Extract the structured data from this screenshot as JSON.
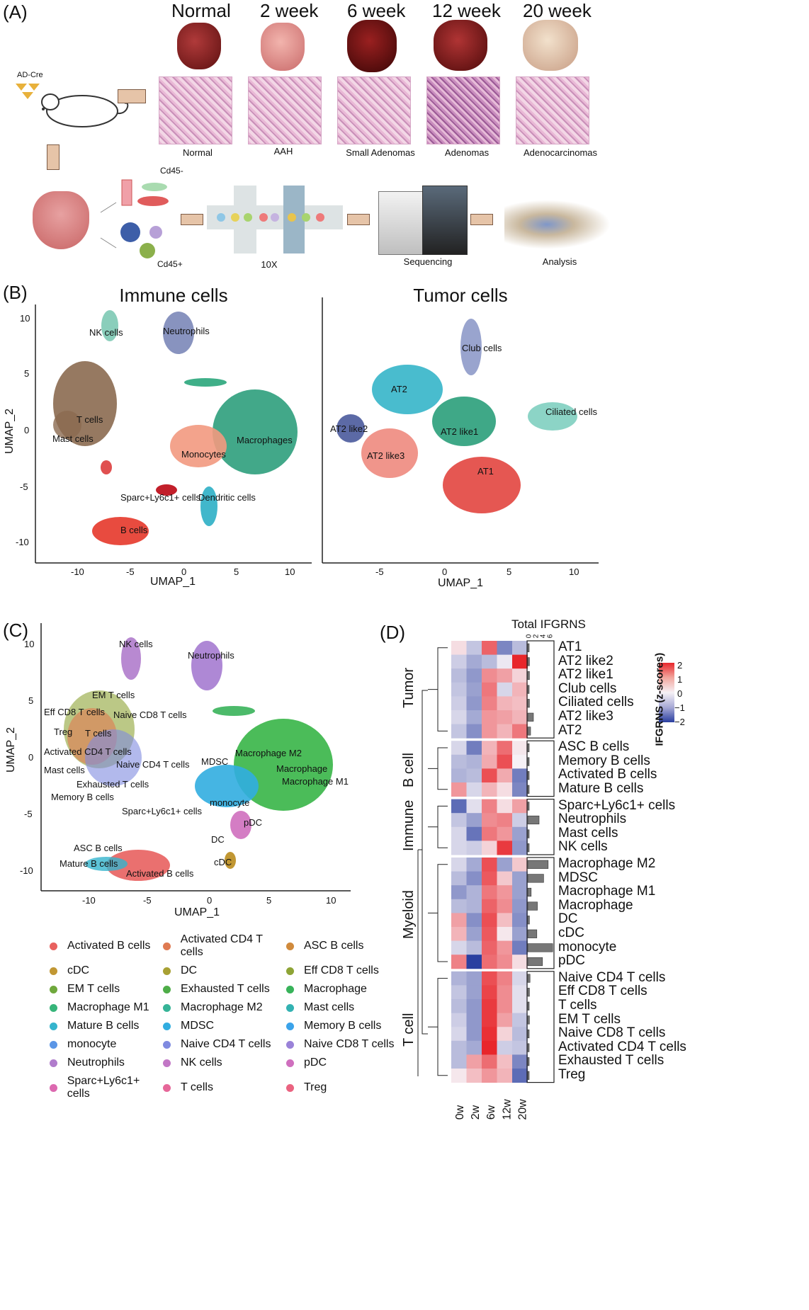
{
  "panelA": {
    "label": "(A)",
    "stages": [
      "Normal",
      "2 week",
      "6 week",
      "12 week",
      "20 week"
    ],
    "captions": [
      "Normal",
      "AAH",
      "Small Adenomas",
      "Adenomas",
      "Adenocarcinomas"
    ],
    "adcre": "AD-Cre",
    "cd45neg": "Cd45-",
    "cd45pos": "Cd45+",
    "tenx": "10X",
    "sequencing": "Sequencing",
    "analysis": "Analysis"
  },
  "panelB": {
    "label": "(B)",
    "left_title": "Immune cells",
    "right_title": "Tumor cells",
    "ylabel": "UMAP_2",
    "xlabel": "UMAP_1",
    "left_yticks": [
      "10",
      "5",
      "0",
      "-5",
      "-10"
    ],
    "left_xticks": [
      "-10",
      "-5",
      "0",
      "5",
      "10"
    ],
    "right_xticks": [
      "-5",
      "0",
      "5",
      "10"
    ],
    "left_clusters": [
      "NK cells",
      "Neutrophils",
      "T cells",
      "Mast cells",
      "Macrophages",
      "Monocytes",
      "Sparc+Ly6c1+ cells",
      "Dendritic cells",
      "B cells"
    ],
    "right_clusters": [
      "Club cells",
      "AT2",
      "Ciliated cells",
      "AT2 like2",
      "AT2 like1",
      "AT2 like3",
      "AT1"
    ]
  },
  "panelC": {
    "label": "(C)",
    "ylabel": "UMAP_2",
    "xlabel": "UMAP_1",
    "yticks": [
      "10",
      "5",
      "0",
      "-5",
      "-10"
    ],
    "xticks": [
      "-10",
      "-5",
      "0",
      "5",
      "10"
    ],
    "clusters": [
      "NK cells",
      "Neutrophils",
      "EM T cells",
      "Eff CD8 T cells",
      "Naive CD8 T cells",
      "Treg",
      "T cells",
      "Activated CD4 T cells",
      "Mast cells",
      "Naive CD4 T cells",
      "Exhausted T cells",
      "Memory B cells",
      "MDSC",
      "Macrophage M2",
      "Macrophage",
      "Macrophage M1",
      "monocyte",
      "Sparc+Ly6c1+ cells",
      "pDC",
      "DC",
      "cDC",
      "ASC B cells",
      "Mature B cells",
      "Activated B cells"
    ],
    "legend": [
      {
        "name": "Activated B cells",
        "color": "#e8615f"
      },
      {
        "name": "Activated CD4 T cells",
        "color": "#df7a52"
      },
      {
        "name": "ASC B cells",
        "color": "#d08a3c"
      },
      {
        "name": "cDC",
        "color": "#c19733"
      },
      {
        "name": "DC",
        "color": "#a8a033"
      },
      {
        "name": "Eff CD8 T cells",
        "color": "#8ea436"
      },
      {
        "name": "EM T cells",
        "color": "#6fa83c"
      },
      {
        "name": "Exhausted T cells",
        "color": "#4ead48"
      },
      {
        "name": "Macrophage",
        "color": "#38b35a"
      },
      {
        "name": "Macrophage M1",
        "color": "#37b57a"
      },
      {
        "name": "Macrophage M2",
        "color": "#36b497"
      },
      {
        "name": "Mast cells",
        "color": "#33b2b2"
      },
      {
        "name": "Mature B cells",
        "color": "#35b4cd"
      },
      {
        "name": "MDSC",
        "color": "#31ade0"
      },
      {
        "name": "Memory B cells",
        "color": "#3ba3ea"
      },
      {
        "name": "monocyte",
        "color": "#5b96e6"
      },
      {
        "name": "Naive CD4 T cells",
        "color": "#7f8ae0"
      },
      {
        "name": "Naive CD8 T cells",
        "color": "#9a82d8"
      },
      {
        "name": "Neutrophils",
        "color": "#b07ccc"
      },
      {
        "name": "NK cells",
        "color": "#c277c6"
      },
      {
        "name": "pDC",
        "color": "#cf6fbe"
      },
      {
        "name": "Sparc+Ly6c1+ cells",
        "color": "#dc69b0"
      },
      {
        "name": "T cells",
        "color": "#e66799"
      },
      {
        "name": "Treg",
        "color": "#ea6380"
      }
    ]
  },
  "panelD": {
    "label": "(D)",
    "total_title": "Total IFGRNS",
    "total_ticks": [
      "0",
      "2",
      "4",
      "6"
    ],
    "legend_title": "IFGRNS (z-scores)",
    "legend_ticks": [
      "2",
      "1",
      "0",
      "−1",
      "−2"
    ],
    "columns": [
      "0w",
      "2w",
      "6w",
      "12w",
      "20w"
    ],
    "groups": [
      {
        "name": "Tumor",
        "rows": [
          {
            "name": "AT1",
            "z": [
              0.2,
              -0.5,
              1.4,
              -1.2,
              -0.6
            ],
            "total": 0.2
          },
          {
            "name": "AT2 like2",
            "z": [
              -0.4,
              -0.8,
              -0.6,
              -0.1,
              2.0
            ],
            "total": 0.3
          },
          {
            "name": "AT2 like1",
            "z": [
              -0.6,
              -1.0,
              1.0,
              0.8,
              0.3
            ],
            "total": 0.3
          },
          {
            "name": "Club cells",
            "z": [
              -0.5,
              -0.9,
              1.2,
              -0.3,
              0.6
            ],
            "total": 0.2
          },
          {
            "name": "Ciliated cells",
            "z": [
              -0.4,
              -1.0,
              1.1,
              0.6,
              0.5
            ],
            "total": 0.3
          },
          {
            "name": "AT2 like3",
            "z": [
              -0.3,
              -0.8,
              0.9,
              0.8,
              0.6
            ],
            "total": 1.0
          },
          {
            "name": "AT2",
            "z": [
              -0.5,
              -1.1,
              0.9,
              0.6,
              1.2
            ],
            "total": 0.5
          }
        ]
      },
      {
        "name": "B cell",
        "rows": [
          {
            "name": "ASC B cells",
            "z": [
              -0.3,
              -1.3,
              0.6,
              1.3,
              0.1
            ],
            "total": 0.2
          },
          {
            "name": "Memory B cells",
            "z": [
              -0.6,
              -0.7,
              0.7,
              1.6,
              0.0
            ],
            "total": 0.2
          },
          {
            "name": "Activated B cells",
            "z": [
              -0.7,
              -0.6,
              1.6,
              0.7,
              -1.3
            ],
            "total": 0.2
          },
          {
            "name": "Mature B cells",
            "z": [
              0.9,
              -0.3,
              0.6,
              0.2,
              -1.2
            ],
            "total": 0.1
          }
        ]
      },
      {
        "name": "Immune",
        "rows": [
          {
            "name": "Sparc+Ly6c1+ cells",
            "z": [
              -1.5,
              -0.2,
              1.1,
              0.2,
              0.8
            ],
            "total": 0.2
          },
          {
            "name": "Neutrophils",
            "z": [
              -0.5,
              -0.9,
              1.0,
              1.1,
              -0.4
            ],
            "total": 2.0
          },
          {
            "name": "Mast cells",
            "z": [
              -0.3,
              -1.4,
              1.2,
              0.9,
              -0.9
            ],
            "total": 0.2
          },
          {
            "name": "NK cells",
            "z": [
              -0.3,
              -0.4,
              0.3,
              1.8,
              -1.0
            ],
            "total": 0.1
          }
        ]
      },
      {
        "name": "Myeloid",
        "rows": [
          {
            "name": "Macrophage M2",
            "z": [
              -0.3,
              -0.8,
              1.6,
              -0.9,
              0.4
            ],
            "total": 3.6
          },
          {
            "name": "MDSC",
            "z": [
              -0.6,
              -1.1,
              1.5,
              0.4,
              -0.9
            ],
            "total": 2.8
          },
          {
            "name": "Macrophage M1",
            "z": [
              -1.0,
              -0.7,
              1.2,
              0.9,
              -0.9
            ],
            "total": 0.6
          },
          {
            "name": "Macrophage",
            "z": [
              -0.6,
              -0.7,
              1.4,
              1.0,
              -1.0
            ],
            "total": 1.7
          },
          {
            "name": "DC",
            "z": [
              0.8,
              -1.1,
              1.6,
              0.5,
              -1.1
            ],
            "total": 0.3
          },
          {
            "name": "cDC",
            "z": [
              0.6,
              -0.9,
              1.5,
              0.1,
              -0.9
            ],
            "total": 1.6
          },
          {
            "name": "monocyte",
            "z": [
              -0.3,
              -0.6,
              1.4,
              0.9,
              -1.3
            ],
            "total": 4.4
          },
          {
            "name": "pDC",
            "z": [
              1.1,
              -2.0,
              1.3,
              1.0,
              0.2
            ],
            "total": 2.6
          }
        ]
      },
      {
        "name": "T cell",
        "rows": [
          {
            "name": "Naive CD4 T cells",
            "z": [
              -0.7,
              -0.9,
              1.6,
              1.1,
              -0.3
            ],
            "total": 0.4
          },
          {
            "name": "Eff CD8 T cells",
            "z": [
              -0.5,
              -0.9,
              1.7,
              1.0,
              -0.2
            ],
            "total": 0.3
          },
          {
            "name": "T cells",
            "z": [
              -0.6,
              -1.0,
              1.8,
              1.0,
              -0.2
            ],
            "total": 0.2
          },
          {
            "name": "EM T cells",
            "z": [
              -0.4,
              -1.0,
              1.8,
              0.8,
              -0.5
            ],
            "total": 0.3
          },
          {
            "name": "Naive CD8 T cells",
            "z": [
              -0.3,
              -1.0,
              1.9,
              0.3,
              -0.6
            ],
            "total": 0.2
          },
          {
            "name": "Activated CD4 T cells",
            "z": [
              -0.6,
              -0.8,
              2.0,
              -0.4,
              -0.5
            ],
            "total": 0.2
          },
          {
            "name": "Exhausted T cells",
            "z": [
              -0.6,
              0.8,
              1.3,
              0.5,
              -1.2
            ],
            "total": 0.2
          },
          {
            "name": "Treg",
            "z": [
              0.1,
              0.5,
              0.9,
              0.6,
              -1.5
            ],
            "total": 0.1
          }
        ]
      }
    ]
  }
}
